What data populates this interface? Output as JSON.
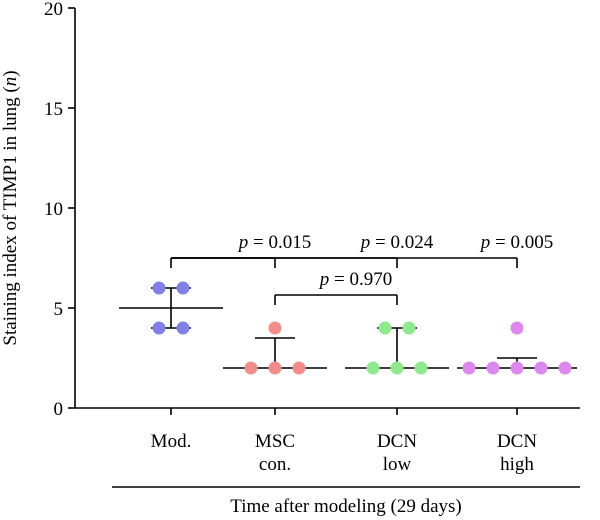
{
  "chart_data": {
    "type": "scatter",
    "title": "",
    "ylabel_parts": [
      "Staining index of TIMP1 in lung (",
      "n",
      ")"
    ],
    "xlabel": "Time after modeling (29 days)",
    "ylim": [
      0,
      20
    ],
    "yticks": [
      0,
      5,
      10,
      15,
      20
    ],
    "categories": [
      {
        "lines": [
          "Mod."
        ],
        "color": "#8080e6",
        "points": [
          6,
          6,
          4,
          4
        ],
        "center": 5.0,
        "upper": 6.0,
        "lower": 4.0
      },
      {
        "lines": [
          "MSC",
          "con."
        ],
        "color": "#f08c8c",
        "points": [
          4,
          2,
          2,
          2
        ],
        "center": 2.0,
        "upper": 3.5,
        "lower": null
      },
      {
        "lines": [
          "DCN",
          "low"
        ],
        "color": "#8ee88e",
        "points": [
          4,
          4,
          2,
          2,
          2
        ],
        "center": 2.0,
        "upper": 4.0,
        "lower": null
      },
      {
        "lines": [
          "DCN",
          "high"
        ],
        "color": "#dd88ee",
        "points": [
          4,
          2,
          2,
          2,
          2,
          2
        ],
        "center": 2.0,
        "upper": 2.5,
        "lower": null
      }
    ],
    "comparisons": [
      {
        "from": 0,
        "to": 1,
        "label_prefix": "p",
        "label_value": " = 0.015",
        "y": 7.5
      },
      {
        "from": 0,
        "to": 2,
        "label_prefix": "p",
        "label_value": " = 0.024",
        "y": 7.5
      },
      {
        "from": 0,
        "to": 3,
        "label_prefix": "p",
        "label_value": " = 0.005",
        "y": 7.5
      },
      {
        "from": 1,
        "to": 2,
        "label_prefix": "p",
        "label_value": " = 0.970",
        "y": 5.65
      }
    ]
  }
}
